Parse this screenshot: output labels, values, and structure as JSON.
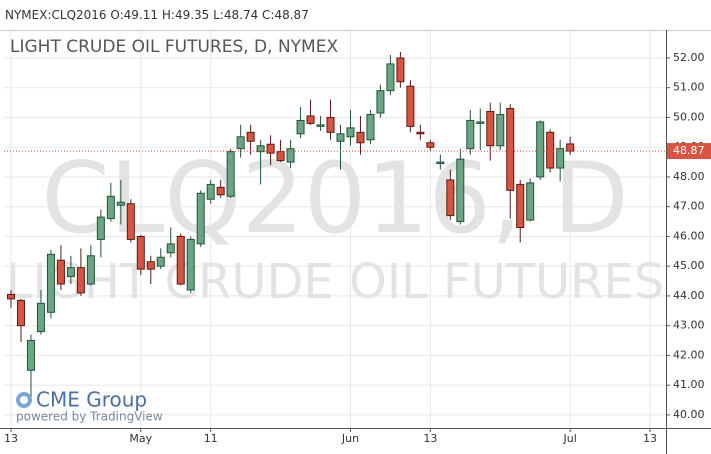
{
  "header": {
    "symbol": "NYMEX:CLQ2016",
    "open_label": "O:",
    "high_label": "H:",
    "low_label": "L:",
    "close_label": "C:"
  },
  "branding": {
    "logo": "CME Group",
    "powered": "powered by TradingView"
  },
  "chart_data": {
    "type": "candlestick",
    "title": "LIGHT CRUDE OIL FUTURES, D, NYMEX",
    "watermark": "CLQ2016, D",
    "watermark_subtitle": "LIGHT CRUDE OIL FUTURES",
    "up_color": "#6ba583",
    "down_color": "#d75442",
    "last_color": "#d75442",
    "grid": true,
    "open": [
      44.05,
      43.85,
      41.5,
      42.8,
      43.45,
      45.2,
      44.65,
      44.95,
      44.4,
      45.9,
      46.6,
      47.05,
      47.1,
      46.0,
      45.15,
      45.0,
      45.45,
      46.0,
      44.2,
      45.75,
      47.25,
      47.65,
      47.35,
      48.95,
      49.5,
      48.85,
      49.1,
      48.85,
      48.5,
      49.45,
      50.05,
      49.7,
      50.0,
      49.2,
      49.35,
      49.5,
      49.25,
      50.15,
      50.9,
      52.0,
      51.05,
      49.5,
      49.15,
      48.45,
      47.9,
      46.5,
      48.95,
      49.8,
      50.2,
      49.05,
      50.3,
      47.75,
      46.55,
      48.0,
      49.5,
      48.3,
      49.11
    ],
    "high": [
      44.2,
      43.9,
      42.7,
      44.2,
      45.55,
      45.7,
      45.35,
      45.6,
      45.7,
      46.9,
      47.8,
      47.9,
      47.25,
      46.05,
      45.35,
      45.6,
      46.3,
      46.1,
      46.0,
      47.55,
      47.9,
      47.9,
      48.95,
      49.75,
      49.75,
      49.25,
      49.4,
      49.25,
      49.25,
      50.35,
      50.6,
      50.05,
      50.6,
      49.75,
      50.25,
      50.05,
      50.25,
      51.1,
      52.1,
      52.2,
      51.25,
      49.75,
      49.25,
      48.75,
      48.25,
      48.95,
      50.25,
      50.3,
      50.5,
      50.5,
      50.45,
      47.9,
      47.95,
      49.9,
      49.6,
      49.25,
      49.35
    ],
    "low": [
      43.6,
      42.45,
      40.5,
      42.7,
      43.25,
      44.2,
      44.4,
      44.0,
      44.35,
      45.3,
      46.5,
      46.4,
      45.8,
      44.7,
      44.4,
      44.9,
      45.3,
      44.35,
      44.1,
      45.65,
      47.1,
      47.3,
      47.3,
      48.65,
      48.75,
      47.75,
      48.4,
      48.5,
      48.3,
      49.3,
      49.75,
      49.55,
      49.25,
      48.25,
      49.05,
      48.75,
      49.1,
      50.0,
      50.75,
      51.0,
      49.5,
      49.25,
      48.9,
      48.25,
      46.55,
      46.4,
      48.75,
      48.9,
      48.55,
      48.9,
      46.6,
      45.8,
      46.5,
      47.9,
      48.15,
      47.85,
      48.74
    ],
    "close": [
      43.9,
      43.0,
      42.5,
      43.75,
      45.4,
      44.4,
      44.95,
      44.1,
      45.35,
      46.65,
      47.35,
      47.15,
      45.9,
      44.9,
      44.9,
      45.3,
      45.75,
      44.4,
      45.9,
      47.45,
      47.75,
      47.4,
      48.85,
      49.35,
      49.2,
      49.05,
      48.8,
      48.55,
      48.95,
      49.9,
      49.8,
      49.75,
      49.5,
      49.45,
      49.65,
      49.15,
      50.1,
      50.9,
      51.8,
      51.2,
      49.7,
      49.45,
      49.0,
      48.5,
      46.7,
      48.6,
      49.9,
      49.85,
      49.05,
      50.1,
      47.55,
      46.3,
      47.8,
      49.85,
      48.3,
      48.95,
      48.87
    ],
    "xlim": [
      -0.7,
      65.6
    ],
    "xticks": [
      {
        "value": 0,
        "label": "13"
      },
      {
        "value": 13,
        "label": "May"
      },
      {
        "value": 20,
        "label": "11"
      },
      {
        "value": 34,
        "label": "Jun"
      },
      {
        "value": 42,
        "label": "13"
      },
      {
        "value": 56,
        "label": "Jul"
      },
      {
        "value": 64,
        "label": "13"
      }
    ],
    "ylim": [
      39.56,
      52.94
    ],
    "yticks": [
      {
        "value": 40,
        "label": "40.00"
      },
      {
        "value": 41,
        "label": "41.00"
      },
      {
        "value": 42,
        "label": "42.00"
      },
      {
        "value": 43,
        "label": "43.00"
      },
      {
        "value": 44,
        "label": "44.00"
      },
      {
        "value": 45,
        "label": "45.00"
      },
      {
        "value": 46,
        "label": "46.00"
      },
      {
        "value": 47,
        "label": "47.00"
      },
      {
        "value": 48,
        "label": "48.00"
      },
      {
        "value": 49,
        "label": "49.00"
      },
      {
        "value": 50,
        "label": "50.00"
      },
      {
        "value": 51,
        "label": "51.00"
      },
      {
        "value": 52,
        "label": "52.00"
      }
    ]
  }
}
